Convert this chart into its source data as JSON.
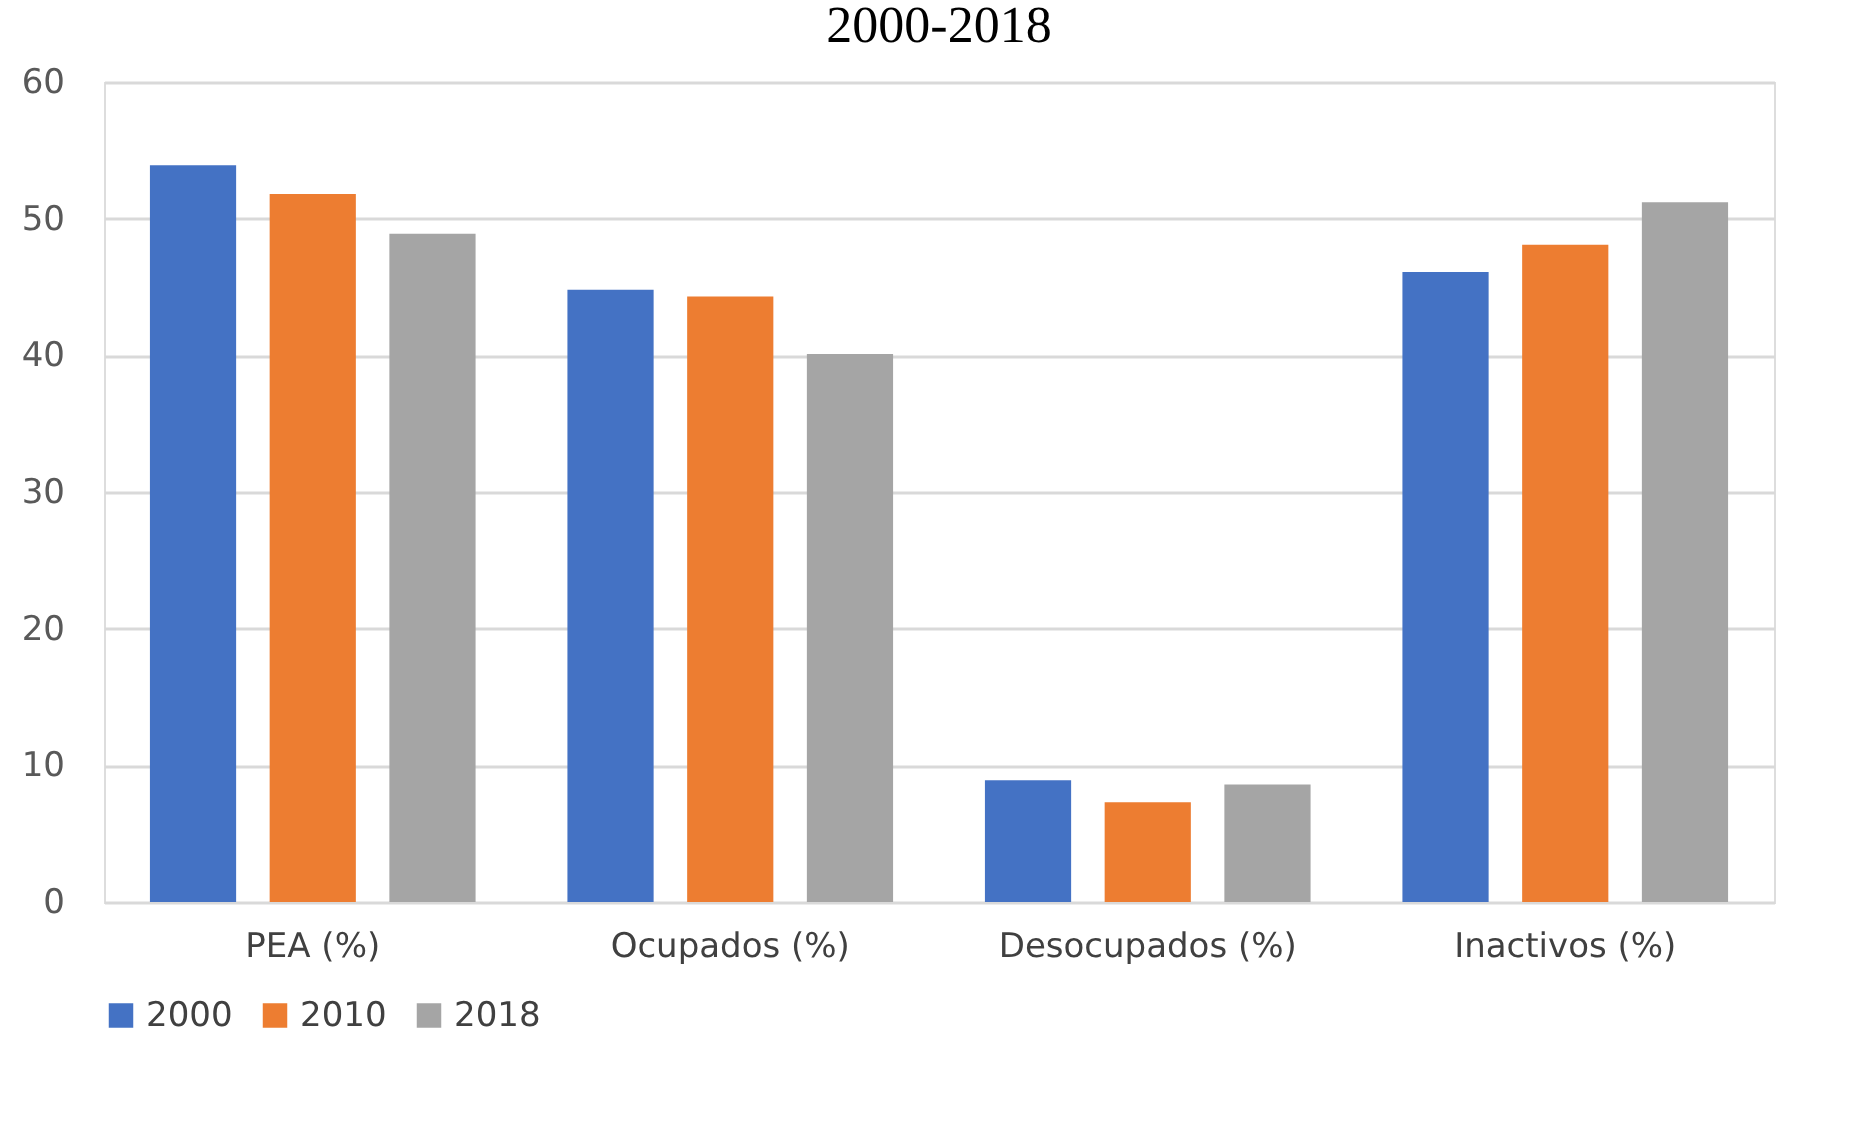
{
  "chart_data": {
    "type": "bar",
    "title": "2000-2018",
    "categories": [
      "PEA (%)",
      "Ocupados (%)",
      "Desocupados (%)",
      "Inactivos (%)"
    ],
    "series": [
      {
        "name": "2000",
        "color": "#4472c4",
        "values": [
          53.9,
          44.8,
          8.9,
          46.1
        ]
      },
      {
        "name": "2010",
        "color": "#ed7d31",
        "values": [
          51.8,
          44.3,
          7.3,
          48.1
        ]
      },
      {
        "name": "2018",
        "color": "#a5a5a5",
        "values": [
          48.9,
          40.1,
          8.6,
          51.2
        ]
      }
    ],
    "ylim": [
      0,
      60
    ],
    "yticks": [
      0,
      10,
      20,
      30,
      40,
      50,
      60
    ],
    "grid": "y",
    "legend": "bottom"
  }
}
